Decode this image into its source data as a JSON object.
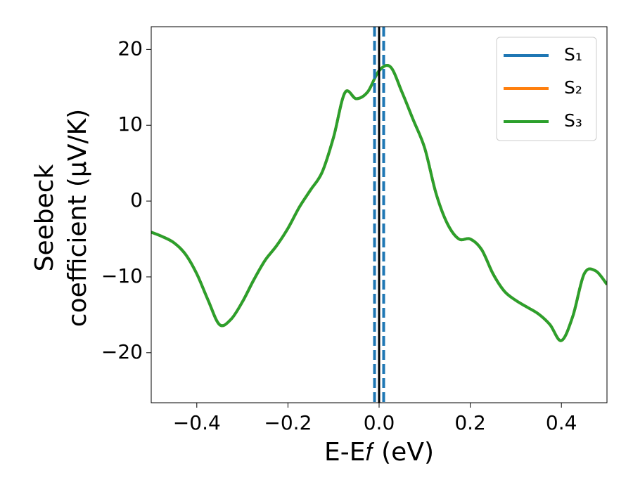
{
  "chart_data": {
    "type": "line",
    "xlabel": "E-E𝑓 (eV)",
    "ylabel": [
      "Seebeck",
      "coefficient  (μV/K)"
    ],
    "x": [
      -0.5,
      -0.475,
      -0.45,
      -0.425,
      -0.4,
      -0.375,
      -0.35,
      -0.325,
      -0.3,
      -0.275,
      -0.25,
      -0.225,
      -0.2,
      -0.175,
      -0.15,
      -0.125,
      -0.1,
      -0.075,
      -0.05,
      -0.025,
      0,
      0.025,
      0.05,
      0.075,
      0.1,
      0.125,
      0.15,
      0.175,
      0.2,
      0.225,
      0.25,
      0.275,
      0.3,
      0.325,
      0.35,
      0.375,
      0.4,
      0.425,
      0.45,
      0.475,
      0.5
    ],
    "series": [
      {
        "name": "S₁",
        "color": "#1f77b4",
        "values": [
          -4.1,
          -4.7,
          -5.5,
          -7.0,
          -9.6,
          -13.1,
          -16.3,
          -15.6,
          -13.3,
          -10.4,
          -7.8,
          -5.9,
          -3.6,
          -0.8,
          1.5,
          3.8,
          8.4,
          14.3,
          13.5,
          14.4,
          17.2,
          17.7,
          14.4,
          10.7,
          7.0,
          1.0,
          -3.0,
          -5.0,
          -5.0,
          -6.4,
          -9.6,
          -11.9,
          -13.1,
          -14.0,
          -14.9,
          -16.3,
          -18.4,
          -15.2,
          -9.6,
          -9.2,
          -11.0
        ]
      },
      {
        "name": "S₂",
        "color": "#ff7f0e",
        "values": [
          -4.1,
          -4.7,
          -5.5,
          -7.0,
          -9.6,
          -13.1,
          -16.3,
          -15.6,
          -13.3,
          -10.4,
          -7.8,
          -5.9,
          -3.6,
          -0.8,
          1.5,
          3.8,
          8.4,
          14.3,
          13.5,
          14.4,
          17.2,
          17.7,
          14.4,
          10.7,
          7.0,
          1.0,
          -3.0,
          -5.0,
          -5.0,
          -6.4,
          -9.6,
          -11.9,
          -13.1,
          -14.0,
          -14.9,
          -16.3,
          -18.4,
          -15.2,
          -9.6,
          -9.2,
          -11.0
        ]
      },
      {
        "name": "S₃",
        "color": "#2ca02c",
        "values": [
          -4.1,
          -4.7,
          -5.5,
          -7.0,
          -9.6,
          -13.1,
          -16.3,
          -15.6,
          -13.3,
          -10.4,
          -7.8,
          -5.9,
          -3.6,
          -0.8,
          1.5,
          3.8,
          8.4,
          14.3,
          13.5,
          14.4,
          17.2,
          17.7,
          14.4,
          10.7,
          7.0,
          1.0,
          -3.0,
          -5.0,
          -5.0,
          -6.4,
          -9.6,
          -11.9,
          -13.1,
          -14.0,
          -14.9,
          -16.3,
          -18.4,
          -15.2,
          -9.6,
          -9.2,
          -11.0
        ]
      }
    ],
    "vlines": [
      {
        "x": 0,
        "color": "#000000",
        "dashed": false
      },
      {
        "x": -0.01,
        "color": "#1f77b4",
        "dashed": true
      },
      {
        "x": 0.01,
        "color": "#1f77b4",
        "dashed": true
      }
    ],
    "xlim": [
      -0.5,
      0.5
    ],
    "xticks": [
      {
        "value": -0.4,
        "label": "−0.4"
      },
      {
        "value": -0.2,
        "label": "−0.2"
      },
      {
        "value": 0.0,
        "label": "0.0"
      },
      {
        "value": 0.2,
        "label": "0.2"
      },
      {
        "value": 0.4,
        "label": "0.4"
      }
    ],
    "ylim": [
      -26.6,
      23
    ],
    "yticks": [
      {
        "value": -20,
        "label": "−20"
      },
      {
        "value": -10,
        "label": "−10"
      },
      0,
      10,
      20
    ],
    "legend": "upper right",
    "grid": false
  }
}
